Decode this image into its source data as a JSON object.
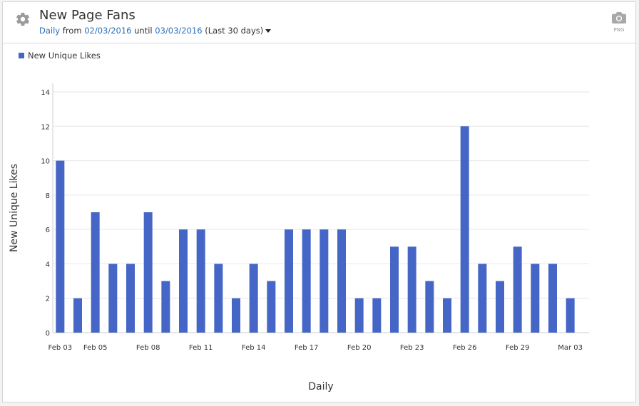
{
  "header": {
    "title": "New Page Fans",
    "granularity": "Daily",
    "from_word": "from",
    "start_date": "02/03/2016",
    "until_word": "until",
    "end_date": "03/03/2016",
    "range_label": "(Last 30 days)",
    "settings_icon": "gear-icon",
    "export_icon": "camera-icon",
    "export_label": "PNG"
  },
  "colors": {
    "bar": "#4566c7",
    "grid": "#e6e6e6",
    "axis_text": "#333333"
  },
  "chart_data": {
    "type": "bar",
    "xlabel": "Daily",
    "ylabel": "New Unique Likes",
    "ylim": [
      0,
      14
    ],
    "yticks": [
      0,
      2,
      4,
      6,
      8,
      10,
      12,
      14
    ],
    "grid": true,
    "legend_position": "top-left",
    "categories": [
      "Feb 03",
      "Feb 04",
      "Feb 05",
      "Feb 06",
      "Feb 07",
      "Feb 08",
      "Feb 09",
      "Feb 10",
      "Feb 11",
      "Feb 12",
      "Feb 13",
      "Feb 14",
      "Feb 15",
      "Feb 16",
      "Feb 17",
      "Feb 18",
      "Feb 19",
      "Feb 20",
      "Feb 21",
      "Feb 22",
      "Feb 23",
      "Feb 24",
      "Feb 25",
      "Feb 26",
      "Feb 27",
      "Feb 28",
      "Feb 29",
      "Mar 01",
      "Mar 02",
      "Mar 03"
    ],
    "tick_labels": [
      "Feb 03",
      "Feb 05",
      "Feb 08",
      "Feb 11",
      "Feb 14",
      "Feb 17",
      "Feb 20",
      "Feb 23",
      "Feb 26",
      "Feb 29",
      "Mar 03"
    ],
    "series": [
      {
        "name": "New Unique Likes",
        "values": [
          10,
          2,
          7,
          4,
          4,
          7,
          3,
          6,
          6,
          4,
          2,
          4,
          3,
          6,
          6,
          6,
          6,
          2,
          2,
          5,
          5,
          3,
          2,
          12,
          4,
          3,
          5,
          4,
          4,
          2
        ]
      }
    ]
  }
}
